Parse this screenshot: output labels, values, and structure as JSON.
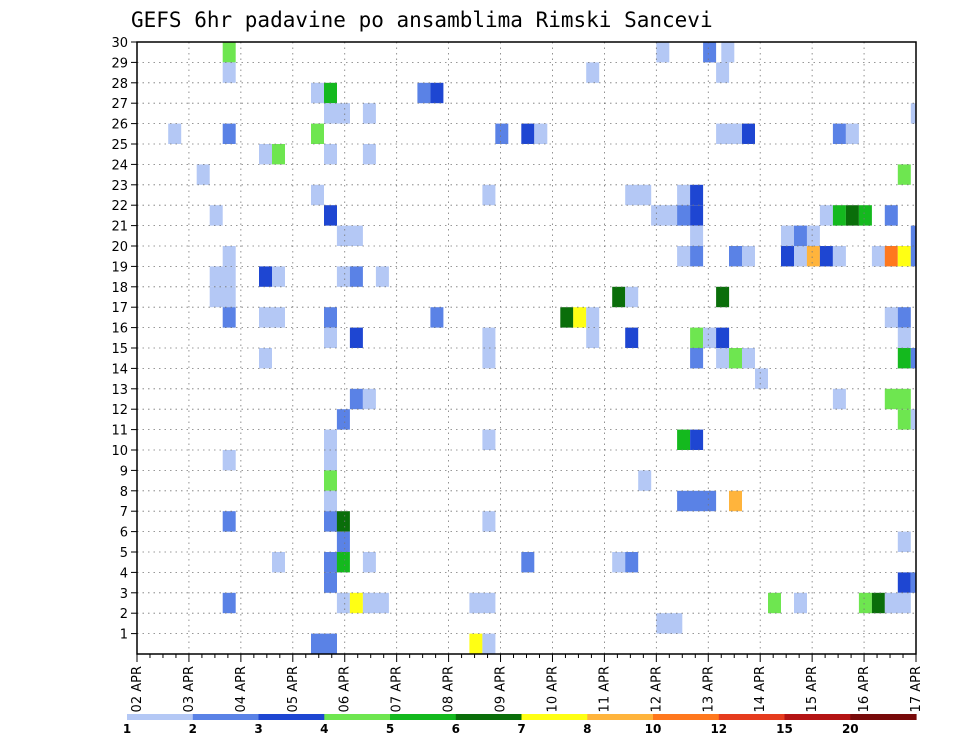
{
  "chart_data": {
    "type": "heatmap",
    "title": "GEFS 6hr padavine po ansamblima Rimski Sancevi",
    "x_tick_labels": [
      "02 APR",
      "03 APR",
      "04 APR",
      "05 APR",
      "06 APR",
      "07 APR",
      "08 APR",
      "09 APR",
      "10 APR",
      "11 APR",
      "12 APR",
      "13 APR",
      "14 APR",
      "15 APR",
      "16 APR",
      "17 APR"
    ],
    "y_tick_labels": [
      "1",
      "2",
      "3",
      "4",
      "5",
      "6",
      "7",
      "8",
      "9",
      "10",
      "11",
      "12",
      "13",
      "14",
      "15",
      "16",
      "17",
      "18",
      "19",
      "20",
      "21",
      "22",
      "23",
      "24",
      "25",
      "26",
      "27",
      "28",
      "29",
      "30"
    ],
    "x_range_days": [
      0,
      15
    ],
    "y_range": [
      0,
      30
    ],
    "grid": true,
    "legend_placement": "bottom",
    "colorbar": {
      "labels": [
        "1",
        "2",
        "3",
        "4",
        "5",
        "6",
        "7",
        "8",
        "10",
        "12",
        "15",
        "20"
      ],
      "colors": [
        "#b4c8f5",
        "#5a82e6",
        "#1e46d2",
        "#6ee650",
        "#14b91e",
        "#0a6e0a",
        "#ffff14",
        "#ffb43c",
        "#ff781e",
        "#e63c1e",
        "#b41414",
        "#780a0a"
      ]
    },
    "cells": [
      [
        30,
        1.65,
        1.9,
        "#6ee650"
      ],
      [
        30,
        10.0,
        10.25,
        "#b4c8f5"
      ],
      [
        30,
        10.9,
        11.15,
        "#5a82e6"
      ],
      [
        30,
        11.25,
        11.5,
        "#b4c8f5"
      ],
      [
        29,
        1.65,
        1.9,
        "#b4c8f5"
      ],
      [
        29,
        8.65,
        8.9,
        "#b4c8f5"
      ],
      [
        29,
        11.15,
        11.4,
        "#b4c8f5"
      ],
      [
        28,
        3.35,
        3.6,
        "#b4c8f5"
      ],
      [
        28,
        3.6,
        3.85,
        "#14b91e"
      ],
      [
        28,
        5.4,
        5.65,
        "#5a82e6"
      ],
      [
        28,
        5.65,
        5.9,
        "#1e46d2"
      ],
      [
        27,
        3.6,
        4.1,
        "#b4c8f5"
      ],
      [
        27,
        4.35,
        4.6,
        "#b4c8f5"
      ],
      [
        27,
        14.9,
        15.0,
        "#b4c8f5"
      ],
      [
        26,
        0.6,
        0.85,
        "#b4c8f5"
      ],
      [
        26,
        1.65,
        1.9,
        "#5a82e6"
      ],
      [
        26,
        3.35,
        3.6,
        "#6ee650"
      ],
      [
        26,
        6.9,
        7.15,
        "#5a82e6"
      ],
      [
        26,
        7.4,
        7.65,
        "#1e46d2"
      ],
      [
        26,
        7.65,
        7.9,
        "#b4c8f5"
      ],
      [
        26,
        11.15,
        11.65,
        "#b4c8f5"
      ],
      [
        26,
        11.65,
        11.9,
        "#1e46d2"
      ],
      [
        26,
        13.4,
        13.65,
        "#5a82e6"
      ],
      [
        26,
        13.65,
        13.9,
        "#b4c8f5"
      ],
      [
        25,
        2.35,
        2.6,
        "#b4c8f5"
      ],
      [
        25,
        2.6,
        2.85,
        "#6ee650"
      ],
      [
        25,
        3.6,
        3.85,
        "#b4c8f5"
      ],
      [
        25,
        4.35,
        4.6,
        "#b4c8f5"
      ],
      [
        24,
        1.15,
        1.4,
        "#b4c8f5"
      ],
      [
        24,
        14.65,
        14.9,
        "#6ee650"
      ],
      [
        23,
        3.35,
        3.6,
        "#b4c8f5"
      ],
      [
        23,
        6.65,
        6.9,
        "#b4c8f5"
      ],
      [
        23,
        9.4,
        9.9,
        "#b4c8f5"
      ],
      [
        23,
        10.4,
        10.65,
        "#b4c8f5"
      ],
      [
        23,
        10.65,
        10.9,
        "#1e46d2"
      ],
      [
        22,
        1.4,
        1.65,
        "#b4c8f5"
      ],
      [
        22,
        3.6,
        3.85,
        "#1e46d2"
      ],
      [
        22,
        9.9,
        10.4,
        "#b4c8f5"
      ],
      [
        22,
        10.4,
        10.65,
        "#5a82e6"
      ],
      [
        22,
        10.65,
        10.9,
        "#1e46d2"
      ],
      [
        22,
        13.15,
        13.4,
        "#b4c8f5"
      ],
      [
        22,
        13.4,
        13.65,
        "#14b91e"
      ],
      [
        22,
        13.65,
        13.9,
        "#0a6e0a"
      ],
      [
        22,
        13.9,
        14.15,
        "#14b91e"
      ],
      [
        22,
        14.4,
        14.65,
        "#5a82e6"
      ],
      [
        21,
        3.85,
        4.35,
        "#b4c8f5"
      ],
      [
        21,
        10.65,
        10.9,
        "#b4c8f5"
      ],
      [
        21,
        12.4,
        12.65,
        "#b4c8f5"
      ],
      [
        21,
        12.65,
        12.9,
        "#5a82e6"
      ],
      [
        21,
        12.9,
        13.15,
        "#b4c8f5"
      ],
      [
        21,
        14.9,
        15.0,
        "#5a82e6"
      ],
      [
        20,
        1.65,
        1.9,
        "#b4c8f5"
      ],
      [
        20,
        10.4,
        10.65,
        "#b4c8f5"
      ],
      [
        20,
        10.65,
        10.9,
        "#5a82e6"
      ],
      [
        20,
        11.4,
        11.65,
        "#5a82e6"
      ],
      [
        20,
        11.65,
        11.9,
        "#b4c8f5"
      ],
      [
        20,
        12.4,
        12.65,
        "#1e46d2"
      ],
      [
        20,
        12.65,
        12.9,
        "#b4c8f5"
      ],
      [
        20,
        12.9,
        13.15,
        "#ffb43c"
      ],
      [
        20,
        13.15,
        13.4,
        "#1e46d2"
      ],
      [
        20,
        13.4,
        13.65,
        "#b4c8f5"
      ],
      [
        20,
        14.15,
        14.4,
        "#b4c8f5"
      ],
      [
        20,
        14.4,
        14.65,
        "#ff781e"
      ],
      [
        20,
        14.65,
        14.9,
        "#ffff14"
      ],
      [
        20,
        14.9,
        15.0,
        "#5a82e6"
      ],
      [
        19,
        1.4,
        1.9,
        "#b4c8f5"
      ],
      [
        19,
        2.35,
        2.6,
        "#1e46d2"
      ],
      [
        19,
        2.6,
        2.85,
        "#b4c8f5"
      ],
      [
        19,
        3.85,
        4.1,
        "#b4c8f5"
      ],
      [
        19,
        4.1,
        4.35,
        "#5a82e6"
      ],
      [
        19,
        4.6,
        4.85,
        "#b4c8f5"
      ],
      [
        18,
        1.4,
        1.9,
        "#b4c8f5"
      ],
      [
        18,
        9.15,
        9.4,
        "#0a6e0a"
      ],
      [
        18,
        9.4,
        9.65,
        "#b4c8f5"
      ],
      [
        18,
        11.15,
        11.4,
        "#0a6e0a"
      ],
      [
        17,
        1.65,
        1.9,
        "#5a82e6"
      ],
      [
        17,
        2.35,
        2.85,
        "#b4c8f5"
      ],
      [
        17,
        3.6,
        3.85,
        "#5a82e6"
      ],
      [
        17,
        5.65,
        5.9,
        "#5a82e6"
      ],
      [
        17,
        8.15,
        8.4,
        "#0a6e0a"
      ],
      [
        17,
        8.4,
        8.65,
        "#ffff14"
      ],
      [
        17,
        8.65,
        8.9,
        "#b4c8f5"
      ],
      [
        17,
        14.4,
        14.65,
        "#b4c8f5"
      ],
      [
        17,
        14.65,
        14.9,
        "#5a82e6"
      ],
      [
        16,
        3.6,
        3.85,
        "#b4c8f5"
      ],
      [
        16,
        4.1,
        4.35,
        "#1e46d2"
      ],
      [
        16,
        6.65,
        6.9,
        "#b4c8f5"
      ],
      [
        16,
        8.65,
        8.9,
        "#b4c8f5"
      ],
      [
        16,
        9.4,
        9.65,
        "#1e46d2"
      ],
      [
        16,
        10.65,
        10.9,
        "#6ee650"
      ],
      [
        16,
        10.9,
        11.15,
        "#b4c8f5"
      ],
      [
        16,
        11.15,
        11.4,
        "#1e46d2"
      ],
      [
        16,
        14.65,
        14.9,
        "#b4c8f5"
      ],
      [
        15,
        2.35,
        2.6,
        "#b4c8f5"
      ],
      [
        15,
        6.65,
        6.9,
        "#b4c8f5"
      ],
      [
        15,
        10.65,
        10.9,
        "#5a82e6"
      ],
      [
        15,
        11.15,
        11.4,
        "#b4c8f5"
      ],
      [
        15,
        11.4,
        11.65,
        "#6ee650"
      ],
      [
        15,
        11.65,
        11.9,
        "#b4c8f5"
      ],
      [
        15,
        14.65,
        14.9,
        "#14b91e"
      ],
      [
        15,
        14.9,
        15.0,
        "#5a82e6"
      ],
      [
        14,
        11.9,
        12.15,
        "#b4c8f5"
      ],
      [
        13,
        4.1,
        4.35,
        "#5a82e6"
      ],
      [
        13,
        4.35,
        4.6,
        "#b4c8f5"
      ],
      [
        13,
        13.4,
        13.65,
        "#b4c8f5"
      ],
      [
        13,
        14.4,
        14.9,
        "#6ee650"
      ],
      [
        12,
        3.85,
        4.1,
        "#5a82e6"
      ],
      [
        12,
        14.65,
        14.9,
        "#6ee650"
      ],
      [
        12,
        14.9,
        15.0,
        "#b4c8f5"
      ],
      [
        11,
        3.6,
        3.85,
        "#b4c8f5"
      ],
      [
        11,
        6.65,
        6.9,
        "#b4c8f5"
      ],
      [
        11,
        10.4,
        10.65,
        "#14b91e"
      ],
      [
        11,
        10.65,
        10.9,
        "#1e46d2"
      ],
      [
        10,
        1.65,
        1.9,
        "#b4c8f5"
      ],
      [
        10,
        3.6,
        3.85,
        "#b4c8f5"
      ],
      [
        9,
        3.6,
        3.85,
        "#6ee650"
      ],
      [
        9,
        9.65,
        9.9,
        "#b4c8f5"
      ],
      [
        8,
        3.6,
        3.85,
        "#b4c8f5"
      ],
      [
        8,
        10.4,
        11.15,
        "#5a82e6"
      ],
      [
        8,
        11.4,
        11.65,
        "#ffb43c"
      ],
      [
        7,
        1.65,
        1.9,
        "#5a82e6"
      ],
      [
        7,
        3.6,
        3.85,
        "#5a82e6"
      ],
      [
        7,
        3.85,
        4.1,
        "#0a6e0a"
      ],
      [
        7,
        6.65,
        6.9,
        "#b4c8f5"
      ],
      [
        6,
        3.85,
        4.1,
        "#5a82e6"
      ],
      [
        6,
        14.65,
        14.9,
        "#b4c8f5"
      ],
      [
        5,
        2.6,
        2.85,
        "#b4c8f5"
      ],
      [
        5,
        3.6,
        3.85,
        "#5a82e6"
      ],
      [
        5,
        3.85,
        4.1,
        "#14b91e"
      ],
      [
        5,
        4.35,
        4.6,
        "#b4c8f5"
      ],
      [
        5,
        7.4,
        7.65,
        "#5a82e6"
      ],
      [
        5,
        9.15,
        9.4,
        "#b4c8f5"
      ],
      [
        5,
        9.4,
        9.65,
        "#5a82e6"
      ],
      [
        4,
        3.6,
        3.85,
        "#5a82e6"
      ],
      [
        4,
        14.65,
        14.9,
        "#1e46d2"
      ],
      [
        4,
        14.9,
        15.0,
        "#5a82e6"
      ],
      [
        3,
        1.65,
        1.9,
        "#5a82e6"
      ],
      [
        3,
        3.85,
        4.1,
        "#b4c8f5"
      ],
      [
        3,
        4.1,
        4.35,
        "#ffff14"
      ],
      [
        3,
        4.35,
        4.85,
        "#b4c8f5"
      ],
      [
        3,
        6.4,
        6.9,
        "#b4c8f5"
      ],
      [
        3,
        12.15,
        12.4,
        "#6ee650"
      ],
      [
        3,
        12.65,
        12.9,
        "#b4c8f5"
      ],
      [
        3,
        13.9,
        14.15,
        "#6ee650"
      ],
      [
        3,
        14.15,
        14.4,
        "#0a6e0a"
      ],
      [
        3,
        14.4,
        14.9,
        "#b4c8f5"
      ],
      [
        2,
        10.0,
        10.5,
        "#b4c8f5"
      ],
      [
        1,
        3.35,
        3.85,
        "#5a82e6"
      ],
      [
        1,
        6.4,
        6.65,
        "#ffff14"
      ],
      [
        1,
        6.65,
        6.9,
        "#b4c8f5"
      ]
    ]
  }
}
